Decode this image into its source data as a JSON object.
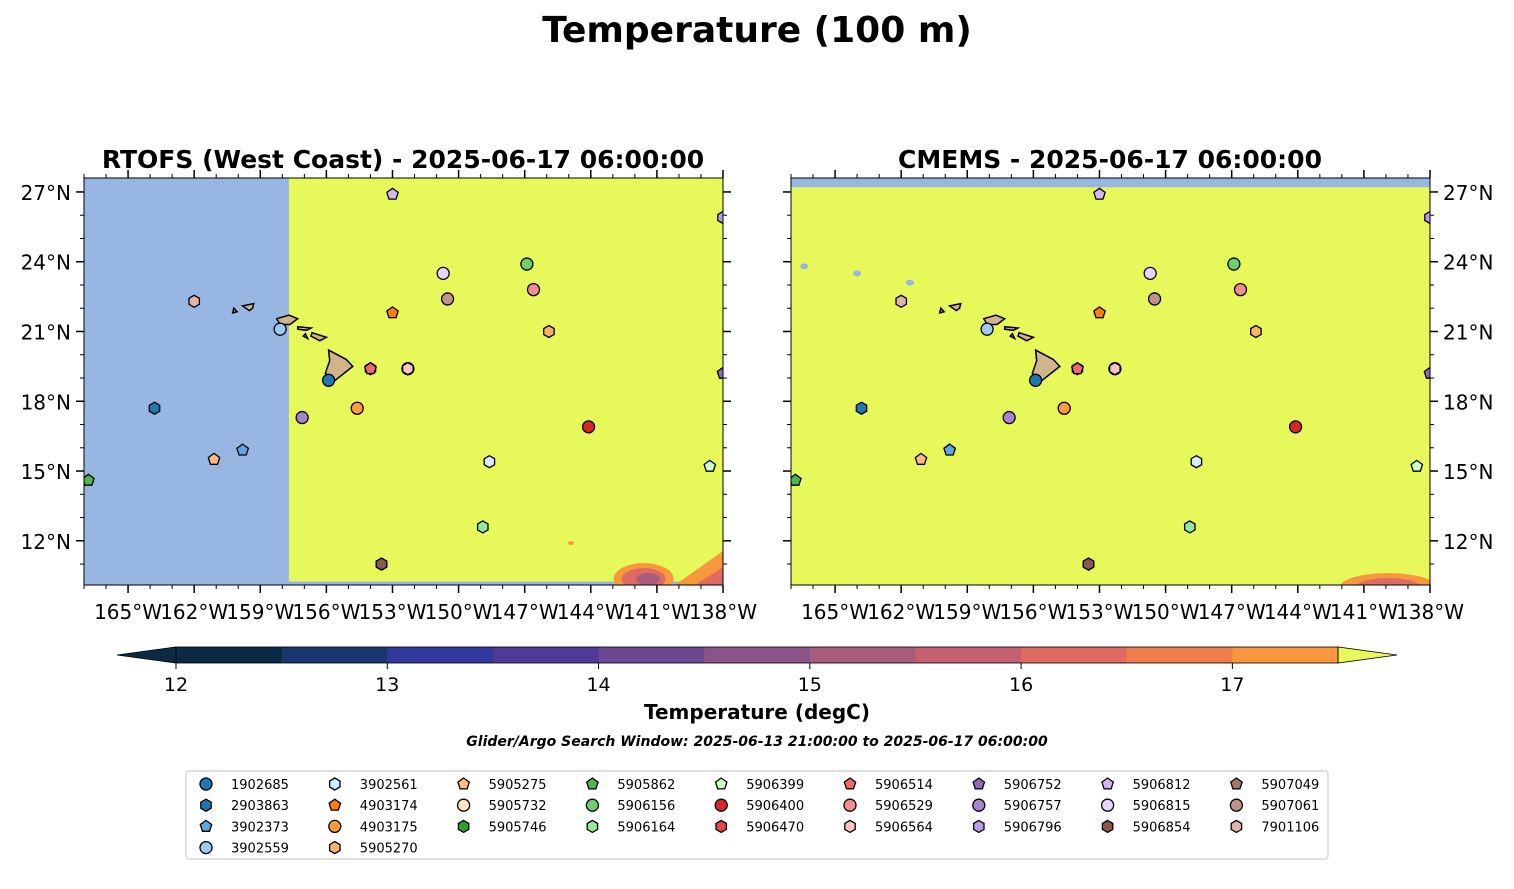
{
  "title": "Temperature (100 m)",
  "left_panel": {
    "title": "RTOFS (West Coast) - 2025-06-17 06:00:00"
  },
  "right_panel": {
    "title": "CMEMS - 2025-06-17 06:00:00"
  },
  "lon_ticks": [
    {
      "value": -165,
      "label": "165°W"
    },
    {
      "value": -162,
      "label": "162°W"
    },
    {
      "value": -159,
      "label": "159°W"
    },
    {
      "value": -156,
      "label": "156°W"
    },
    {
      "value": -153,
      "label": "153°W"
    },
    {
      "value": -150,
      "label": "150°W"
    },
    {
      "value": -147,
      "label": "147°W"
    },
    {
      "value": -144,
      "label": "144°W"
    },
    {
      "value": -141,
      "label": "141°W"
    },
    {
      "value": -138,
      "label": "138°W"
    }
  ],
  "lat_ticks": [
    {
      "value": 27,
      "label": "27°N"
    },
    {
      "value": 24,
      "label": "24°N"
    },
    {
      "value": 21,
      "label": "21°N"
    },
    {
      "value": 18,
      "label": "18°N"
    },
    {
      "value": 15,
      "label": "15°N"
    },
    {
      "value": 12,
      "label": "12°N"
    }
  ],
  "extent": {
    "lon": [
      -167,
      -138
    ],
    "lat": [
      10.1,
      27.6
    ]
  },
  "colors": {
    "land_mask": "#98b6e2",
    "warm": "#e7f95a",
    "island": "#d2b48c"
  },
  "colorbar": {
    "label": "Temperature (degC)",
    "range": [
      11.75,
      17.75
    ],
    "ticks": [
      {
        "value": 12,
        "label": "12"
      },
      {
        "value": 13,
        "label": "13"
      },
      {
        "value": 14,
        "label": "14"
      },
      {
        "value": 15,
        "label": "15"
      },
      {
        "value": 16,
        "label": "16"
      },
      {
        "value": 17,
        "label": "17"
      }
    ],
    "colors": [
      "#0c2a43",
      "#1b356f",
      "#32399c",
      "#503a96",
      "#6b4890",
      "#8a5488",
      "#a85c7e",
      "#c56170",
      "#df6b60",
      "#f07d4c",
      "#f8983e",
      "#f9bb42",
      "#e7f95a"
    ]
  },
  "search_window": "Glider/Argo Search Window: 2025-06-13 21:00:00 to 2025-06-17 06:00:00",
  "legend": [
    {
      "id": "1902685",
      "color": "#1f77b4",
      "marker": "circle"
    },
    {
      "id": "2903863",
      "color": "#1f77b4",
      "marker": "hexagon"
    },
    {
      "id": "3902373",
      "color": "#5fa6e2",
      "marker": "pentagon"
    },
    {
      "id": "3902559",
      "color": "#9ccaf2",
      "marker": "circle"
    },
    {
      "id": "3902561",
      "color": "#d4ecff",
      "marker": "hexagon"
    },
    {
      "id": "4903174",
      "color": "#ff7f0e",
      "marker": "pentagon"
    },
    {
      "id": "4903175",
      "color": "#ff9c3a",
      "marker": "circle"
    },
    {
      "id": "5905270",
      "color": "#ffb26b",
      "marker": "hexagon"
    },
    {
      "id": "5905275",
      "color": "#ffbb82",
      "marker": "pentagon"
    },
    {
      "id": "5905732",
      "color": "#ffe2c4",
      "marker": "circle"
    },
    {
      "id": "5905746",
      "color": "#2ca02c",
      "marker": "hexagon"
    },
    {
      "id": "5905862",
      "color": "#4cb84c",
      "marker": "pentagon"
    },
    {
      "id": "5906156",
      "color": "#6fcf6f",
      "marker": "circle"
    },
    {
      "id": "5906164",
      "color": "#98e698",
      "marker": "hexagon"
    },
    {
      "id": "5906399",
      "color": "#c9ffc9",
      "marker": "pentagon"
    },
    {
      "id": "5906400",
      "color": "#d62728",
      "marker": "circle"
    },
    {
      "id": "5906470",
      "color": "#e8474a",
      "marker": "hexagon"
    },
    {
      "id": "5906514",
      "color": "#f2686a",
      "marker": "pentagon"
    },
    {
      "id": "5906529",
      "color": "#f48e8e",
      "marker": "circle"
    },
    {
      "id": "5906564",
      "color": "#ffc4c4",
      "marker": "hexagon"
    },
    {
      "id": "5906752",
      "color": "#9467bd",
      "marker": "pentagon"
    },
    {
      "id": "5906757",
      "color": "#a884cc",
      "marker": "circle"
    },
    {
      "id": "5906796",
      "color": "#bb9ce0",
      "marker": "hexagon"
    },
    {
      "id": "5906812",
      "color": "#d2b8f0",
      "marker": "pentagon"
    },
    {
      "id": "5906815",
      "color": "#e6d6ff",
      "marker": "circle"
    },
    {
      "id": "5906854",
      "color": "#8c564b",
      "marker": "hexagon"
    },
    {
      "id": "5907049",
      "color": "#a6776b",
      "marker": "pentagon"
    },
    {
      "id": "5907061",
      "color": "#c0928a",
      "marker": "circle"
    },
    {
      "id": "7901106",
      "color": "#e0b4ac",
      "marker": "hexagon"
    }
  ],
  "floats": [
    {
      "id": "1902685",
      "lon": -155.9,
      "lat": 18.9
    },
    {
      "id": "2903863",
      "lon": -163.8,
      "lat": 17.7
    },
    {
      "id": "3902373",
      "lon": -159.8,
      "lat": 15.9
    },
    {
      "id": "3902559",
      "lon": -158.1,
      "lat": 21.1
    },
    {
      "id": "3902561",
      "lon": -148.6,
      "lat": 15.4
    },
    {
      "id": "4903174",
      "lon": -153.0,
      "lat": 21.8
    },
    {
      "id": "4903175",
      "lon": -154.6,
      "lat": 17.7
    },
    {
      "id": "5905270",
      "lon": -145.9,
      "lat": 21.0
    },
    {
      "id": "5905275",
      "lon": -161.1,
      "lat": 15.5
    },
    {
      "id": "5905732",
      "lon": -152.3,
      "lat": 19.4
    },
    {
      "id": "5905746",
      "lon": -153.5,
      "lat": 11.0
    },
    {
      "id": "5905862",
      "lon": -166.8,
      "lat": 14.6
    },
    {
      "id": "5906156",
      "lon": -146.9,
      "lat": 23.9
    },
    {
      "id": "5906164",
      "lon": -148.9,
      "lat": 12.6
    },
    {
      "id": "5906399",
      "lon": -138.6,
      "lat": 15.2
    },
    {
      "id": "5906400",
      "lon": -144.1,
      "lat": 16.9
    },
    {
      "id": "5906470",
      "lon": -154.0,
      "lat": 19.4
    },
    {
      "id": "5906514",
      "lon": -154.0,
      "lat": 19.4
    },
    {
      "id": "5906529",
      "lon": -146.6,
      "lat": 22.8
    },
    {
      "id": "5906564",
      "lon": -152.3,
      "lat": 19.4
    },
    {
      "id": "5906752",
      "lon": -138.0,
      "lat": 19.2
    },
    {
      "id": "5906757",
      "lon": -157.1,
      "lat": 17.3
    },
    {
      "id": "5906796",
      "lon": -138.0,
      "lat": 25.9
    },
    {
      "id": "5906812",
      "lon": -153.0,
      "lat": 26.9
    },
    {
      "id": "5906815",
      "lon": -150.7,
      "lat": 23.5
    },
    {
      "id": "5906854",
      "lon": -153.5,
      "lat": 11.0
    },
    {
      "id": "5907049",
      "lon": -150.5,
      "lat": 22.4
    },
    {
      "id": "5907061",
      "lon": -150.5,
      "lat": 22.4
    },
    {
      "id": "7901106",
      "lon": -162.0,
      "lat": 22.3
    }
  ]
}
